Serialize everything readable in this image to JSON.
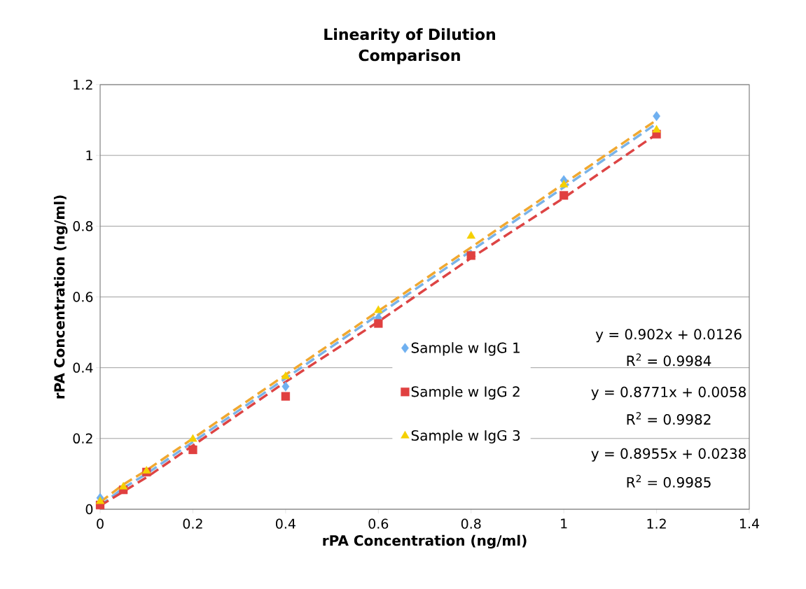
{
  "chart_data": {
    "type": "scatter",
    "title": "Linearity of Dilution Comparison",
    "xlabel": "rPA Concentration (ng/ml)",
    "ylabel": "rPA Concentration (ng/ml)",
    "x": [
      0,
      0.05,
      0.1,
      0.2,
      0.4,
      0.6,
      0.8,
      1,
      1.2
    ],
    "series": [
      {
        "name": "Sample w IgG 1",
        "color": "#6fb0f0",
        "marker": "diamond",
        "values": [
          0.032,
          null,
          null,
          null,
          0.347,
          0.541,
          null,
          0.93,
          1.111
        ]
      },
      {
        "name": "Sample w IgG 2",
        "color": "#e04040",
        "marker": "square",
        "values": [
          0.012,
          0.055,
          0.105,
          0.168,
          0.319,
          0.525,
          0.717,
          0.887,
          1.06
        ]
      },
      {
        "name": "Sample w IgG 3",
        "color": "#f5d000",
        "marker": "triangle",
        "values": [
          0.022,
          0.063,
          0.108,
          0.198,
          0.375,
          0.562,
          0.772,
          0.917,
          1.072
        ]
      },
      {
        "type": "line",
        "color": "#7ab3e8",
        "line_style": "dashed",
        "marker": "none",
        "values": [
          0.01,
          0.06,
          0.1,
          0.19,
          0.37,
          0.55,
          0.73,
          0.91,
          1.09
        ]
      },
      {
        "type": "line",
        "color": "#dd4444",
        "line_style": "dashed",
        "marker": "none",
        "values": [
          0.01,
          0.05,
          0.09,
          0.18,
          0.36,
          0.53,
          0.71,
          0.88,
          1.06
        ]
      },
      {
        "type": "line",
        "color": "#f0a830",
        "line_style": "dashed",
        "marker": "none",
        "values": [
          0.02,
          0.07,
          0.11,
          0.2,
          0.38,
          0.56,
          0.74,
          0.92,
          1.1
        ]
      }
    ],
    "xlim": [
      0,
      1.4
    ],
    "xticks": [
      0,
      0.2,
      0.4,
      0.6,
      0.8,
      1,
      1.2,
      1.4
    ],
    "ylim": [
      0,
      1.2
    ],
    "yticks": [
      0,
      0.2,
      0.4,
      0.6,
      0.8,
      1,
      1.2
    ],
    "grid": "y",
    "legend": "right",
    "annotations": [
      "y = 0.902x + 0.0126",
      "R$^{2}$ = 0.9984",
      "y = 0.8771x + 0.0058",
      "R$^{2}$ = 0.9982",
      "y = 0.8955x + 0.0238",
      "R$^{2}$ = 0.9985"
    ]
  }
}
